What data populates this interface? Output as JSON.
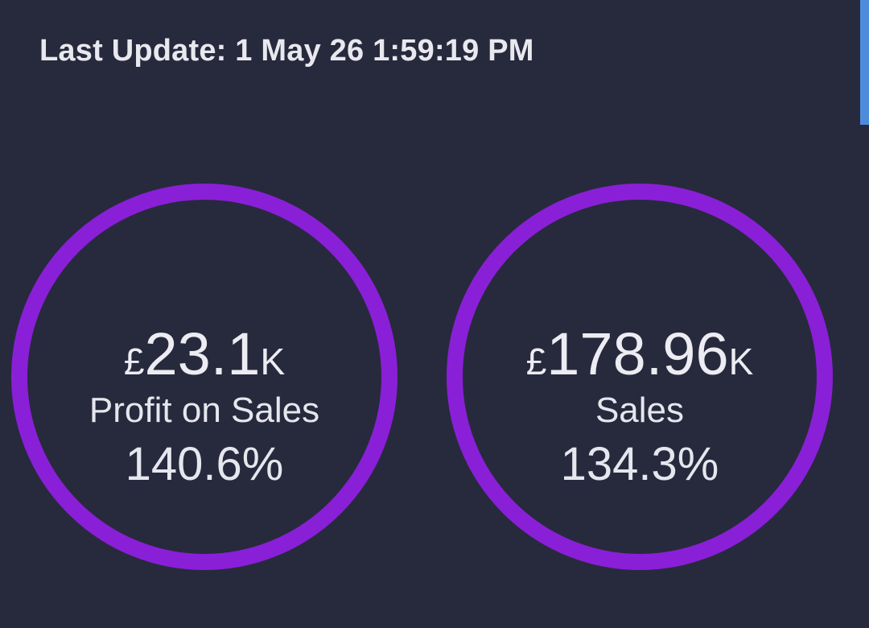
{
  "header": {
    "last_update": "Last Update: 1 May 26 1:59:19 PM"
  },
  "colors": {
    "background": "#272a3d",
    "ring": "#8a1fd8",
    "text": "#ececf2",
    "scroll_indicator": "#4d8bdc"
  },
  "kpis": [
    {
      "currency": "£",
      "amount": "23.1",
      "suffix": "K",
      "label": "Profit on Sales",
      "percent": "140.6%"
    },
    {
      "currency": "£",
      "amount": "178.96",
      "suffix": "K",
      "label": "Sales",
      "percent": "134.3%"
    }
  ]
}
